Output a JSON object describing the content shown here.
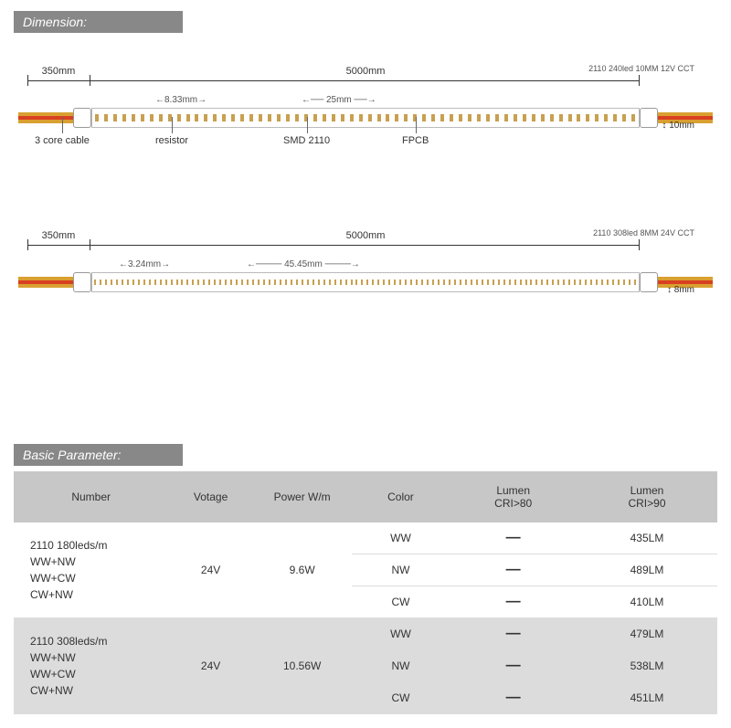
{
  "sections": {
    "dimension_title": "Dimension:",
    "basic_param_title": "Basic Parameter:"
  },
  "diagram1": {
    "cable_len": "350mm",
    "strip_len": "5000mm",
    "pitch1": "8.33mm",
    "pitch2": "25mm",
    "width": "10mm",
    "spec": "2110 240led 10MM 12V CCT",
    "callouts": {
      "cable": "3 core cable",
      "resistor": "resistor",
      "smd": "SMD 2110",
      "fpcb": "FPCB"
    },
    "cable_colors": [
      "#d9a030",
      "#d84020",
      "#d9a030"
    ],
    "led_color": "#c8a050"
  },
  "diagram2": {
    "cable_len": "350mm",
    "strip_len": "5000mm",
    "pitch1": "3.24mm",
    "pitch2": "45.45mm",
    "width": "8mm",
    "spec": "2110 308led 8MM 24V CCT",
    "cable_colors": [
      "#d9a030",
      "#d84020",
      "#d9a030"
    ]
  },
  "table": {
    "columns": [
      "Number",
      "Votage",
      "Power W/m",
      "Color",
      "Lumen\nCRI>80",
      "Lumen\nCRI>90"
    ],
    "col_widths": [
      "22%",
      "12%",
      "14%",
      "14%",
      "18%",
      "20%"
    ],
    "groups": [
      {
        "class": "grp-a",
        "number": "2110 180leds/m\nWW+NW\nWW+CW\nCW+NW",
        "voltage": "24V",
        "power": "9.6W",
        "rows": [
          {
            "color": "WW",
            "cri80": "—",
            "cri90": "435LM"
          },
          {
            "color": "NW",
            "cri80": "—",
            "cri90": "489LM"
          },
          {
            "color": "CW",
            "cri80": "—",
            "cri90": "410LM"
          }
        ]
      },
      {
        "class": "grp-b",
        "number": "2110 308leds/m\nWW+NW\nWW+CW\nCW+NW",
        "voltage": "24V",
        "power": "10.56W",
        "rows": [
          {
            "color": "WW",
            "cri80": "—",
            "cri90": "479LM"
          },
          {
            "color": "NW",
            "cri80": "—",
            "cri90": "538LM"
          },
          {
            "color": "CW",
            "cri80": "—",
            "cri90": "451LM"
          }
        ]
      }
    ]
  }
}
